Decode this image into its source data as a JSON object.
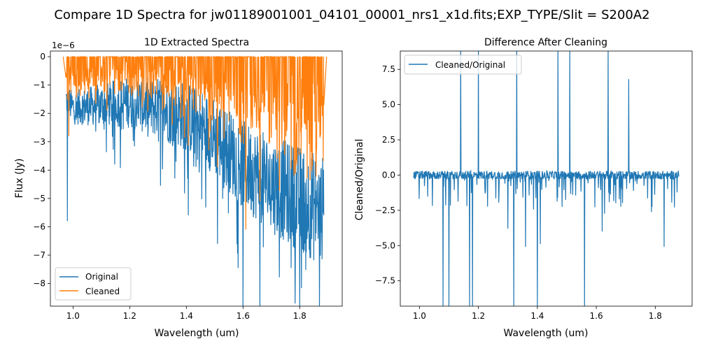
{
  "suptitle": "Compare 1D Spectra for jw01189001001_04101_00001_nrs1_x1d.fits;EXP_TYPE/Slit = S200A2",
  "chart_data": [
    {
      "type": "line",
      "title": "1D Extracted Spectra",
      "xlabel": "Wavelength (um)",
      "ylabel": "Flux (Jy)",
      "offset_text": "1e−6",
      "xlim": [
        0.92,
        1.95
      ],
      "ylim": [
        -8.8,
        0.2
      ],
      "xticks": [
        1.0,
        1.2,
        1.4,
        1.6,
        1.8
      ],
      "xtick_labels": [
        "1.0",
        "1.2",
        "1.4",
        "1.6",
        "1.8"
      ],
      "yticks": [
        0,
        -1,
        -2,
        -3,
        -4,
        -5,
        -6,
        -7,
        -8
      ],
      "ytick_labels": [
        "0",
        "−1",
        "−2",
        "−3",
        "−4",
        "−5",
        "−6",
        "−7",
        "−8"
      ],
      "legend": "lower-left",
      "grid": false,
      "x_range": [
        0.975,
        1.885
      ],
      "series": [
        {
          "name": "Original",
          "color": "#1f77b4",
          "envelope_x": [
            0.975,
            1.0,
            1.1,
            1.2,
            1.3,
            1.4,
            1.5,
            1.6,
            1.7,
            1.8,
            1.885
          ],
          "envelope_mean": [
            -1.5,
            -1.8,
            -1.7,
            -1.6,
            -1.8,
            -2.1,
            -2.8,
            -3.8,
            -4.5,
            -5.0,
            -5.5
          ],
          "spikes": [
            [
              0.98,
              -5.8
            ],
            [
              1.51,
              -6.6
            ],
            [
              1.6,
              -8.9
            ],
            [
              1.66,
              -8.9
            ],
            [
              1.8,
              -8.9
            ],
            [
              1.87,
              -8.9
            ]
          ]
        },
        {
          "name": "Cleaned",
          "color": "#ff7f0e",
          "baseline": 0,
          "x_range": [
            0.975,
            1.885
          ],
          "spikes": [
            [
              0.985,
              -2.8
            ],
            [
              1.12,
              -1.9
            ],
            [
              1.35,
              -2.4
            ],
            [
              1.48,
              -3.3
            ],
            [
              1.61,
              -6.1
            ],
            [
              1.72,
              -3.6
            ],
            [
              1.78,
              -4.2
            ],
            [
              1.86,
              -3.2
            ]
          ]
        }
      ]
    },
    {
      "type": "line",
      "title": "Difference After Cleaning",
      "xlabel": "Wavelength (um)",
      "ylabel": "Cleaned/Original",
      "xlim": [
        0.935,
        1.925
      ],
      "ylim": [
        -9.3,
        8.8
      ],
      "xticks": [
        1.0,
        1.2,
        1.4,
        1.6,
        1.8
      ],
      "xtick_labels": [
        "1.0",
        "1.2",
        "1.4",
        "1.6",
        "1.8"
      ],
      "yticks": [
        7.5,
        5.0,
        2.5,
        0.0,
        -2.5,
        -5.0,
        -7.5
      ],
      "ytick_labels": [
        "7.5",
        "5.0",
        "2.5",
        "0.0",
        "−2.5",
        "−5.0",
        "−7.5"
      ],
      "legend": "upper-left",
      "grid": false,
      "x_range": [
        0.98,
        1.88
      ],
      "series": [
        {
          "name": "Cleaned/Original",
          "color": "#1f77b4",
          "baseline": 0,
          "up_spikes": [
            [
              1.08,
              9
            ],
            [
              1.14,
              9
            ],
            [
              1.18,
              9
            ],
            [
              1.2,
              9
            ],
            [
              1.33,
              9
            ],
            [
              1.47,
              9
            ],
            [
              1.51,
              9
            ],
            [
              1.56,
              9
            ],
            [
              1.64,
              9
            ],
            [
              1.71,
              6.8
            ]
          ],
          "down_spikes": [
            [
              1.08,
              -9.3
            ],
            [
              1.1,
              -9.3
            ],
            [
              1.17,
              -9.3
            ],
            [
              1.18,
              -9.3
            ],
            [
              1.32,
              -9.3
            ],
            [
              1.4,
              -9.3
            ],
            [
              1.56,
              -9.3
            ],
            [
              1.36,
              -5.1
            ],
            [
              1.41,
              -4.9
            ],
            [
              1.3,
              -3.8
            ],
            [
              1.62,
              -4.0
            ],
            [
              1.83,
              -5.1
            ]
          ]
        }
      ]
    }
  ]
}
